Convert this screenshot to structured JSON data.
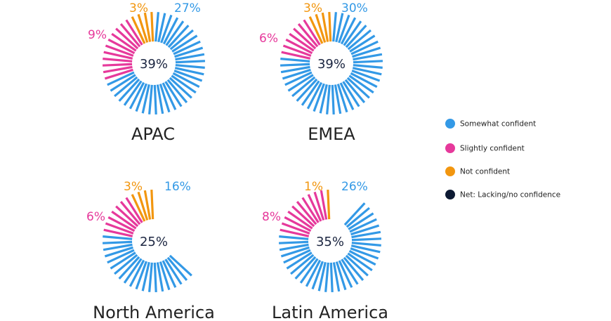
{
  "chart_data": {
    "type": "radial-bar",
    "legend": [
      {
        "key": "somewhat",
        "label": "Somewhat confident",
        "color": "#3399e6"
      },
      {
        "key": "slightly",
        "label": "Slightly confident",
        "color": "#e6399b"
      },
      {
        "key": "not",
        "label": "Not confident",
        "color": "#f2960f"
      },
      {
        "key": "net",
        "label": "Net: Lacking/no confidence",
        "color": "#0d1a33"
      }
    ],
    "legend_position": "right",
    "regions": [
      {
        "name": "APAC",
        "net": "39%",
        "somewhat": "27%",
        "slightly": "9%",
        "not": "3%"
      },
      {
        "name": "EMEA",
        "net": "39%",
        "somewhat": "30%",
        "slightly": "6%",
        "not": "3%"
      },
      {
        "name": "North America",
        "net": "25%",
        "somewhat": "16%",
        "slightly": "6%",
        "not": "3%"
      },
      {
        "name": "Latin America",
        "net": "35%",
        "somewhat": "26%",
        "slightly": "8%",
        "not": "1%"
      }
    ]
  }
}
